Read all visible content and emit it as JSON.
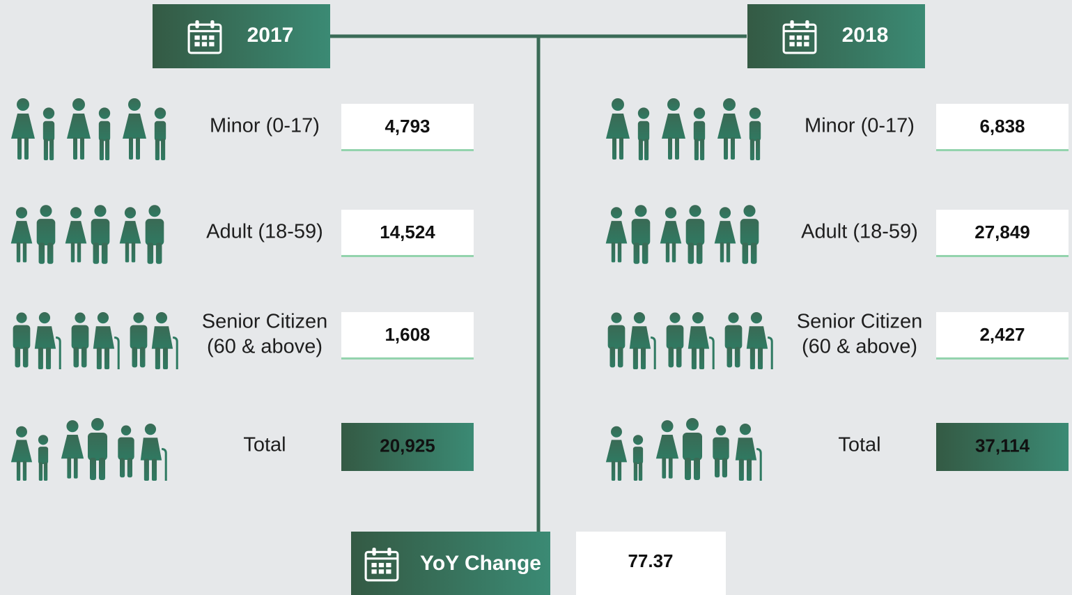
{
  "columns": [
    {
      "year": "2017",
      "rows": [
        {
          "label": [
            "Minor (0-17)"
          ],
          "value": "4,793"
        },
        {
          "label": [
            "Adult (18-59)"
          ],
          "value": "14,524"
        },
        {
          "label": [
            "Senior Citizen",
            "(60 & above)"
          ],
          "value": "1,608"
        },
        {
          "label": [
            "Total"
          ],
          "value": "20,925"
        }
      ]
    },
    {
      "year": "2018",
      "rows": [
        {
          "label": [
            "Minor (0-17)"
          ],
          "value": "6,838"
        },
        {
          "label": [
            "Adult (18-59)"
          ],
          "value": "27,849"
        },
        {
          "label": [
            "Senior Citizen",
            "(60 & above)"
          ],
          "value": "2,427"
        },
        {
          "label": [
            "Total"
          ],
          "value": "37,114"
        }
      ]
    }
  ],
  "yoy": {
    "label": "YoY Change",
    "value": "77.37"
  }
}
